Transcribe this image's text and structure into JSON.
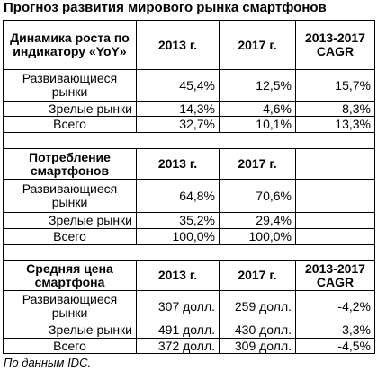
{
  "title": "Прогноз развития мирового рынка смартфонов",
  "sections": [
    {
      "header": [
        "Динамика роста по индикатору «YoY»",
        "2013 г.",
        "2017 г.",
        "2013-2017 CAGR"
      ],
      "rows": [
        [
          "Развивающиеся рынки",
          "45,4%",
          "12,5%",
          "15,7%"
        ],
        [
          "Зрелые рынки",
          "14,3%",
          "4,6%",
          "8,3%"
        ],
        [
          "Всего",
          "32,7%",
          "10,1%",
          "13,3%"
        ]
      ]
    },
    {
      "header": [
        "Потребление смартфонов",
        "2013 г.",
        "2017 г."
      ],
      "rows": [
        [
          "Развивающиеся рынки",
          "64,8%",
          "70,6%"
        ],
        [
          "Зрелые рынки",
          "35,2%",
          "29,4%"
        ],
        [
          "Всего",
          "100,0%",
          "100,0%"
        ]
      ]
    },
    {
      "header": [
        "Средняя цена смартфона",
        "2013 г.",
        "2017 г.",
        "2013-2017 CAGR"
      ],
      "rows": [
        [
          "Развивающиеся рынки",
          "307 долл.",
          "259 долл.",
          "-4,2%"
        ],
        [
          "Зрелые рынки",
          "491 долл.",
          "430 долл.",
          "-3,3%"
        ],
        [
          "Всего",
          "372 долл.",
          "309 долл.",
          "-4,5%"
        ]
      ]
    }
  ],
  "footnote": "По данным IDC."
}
